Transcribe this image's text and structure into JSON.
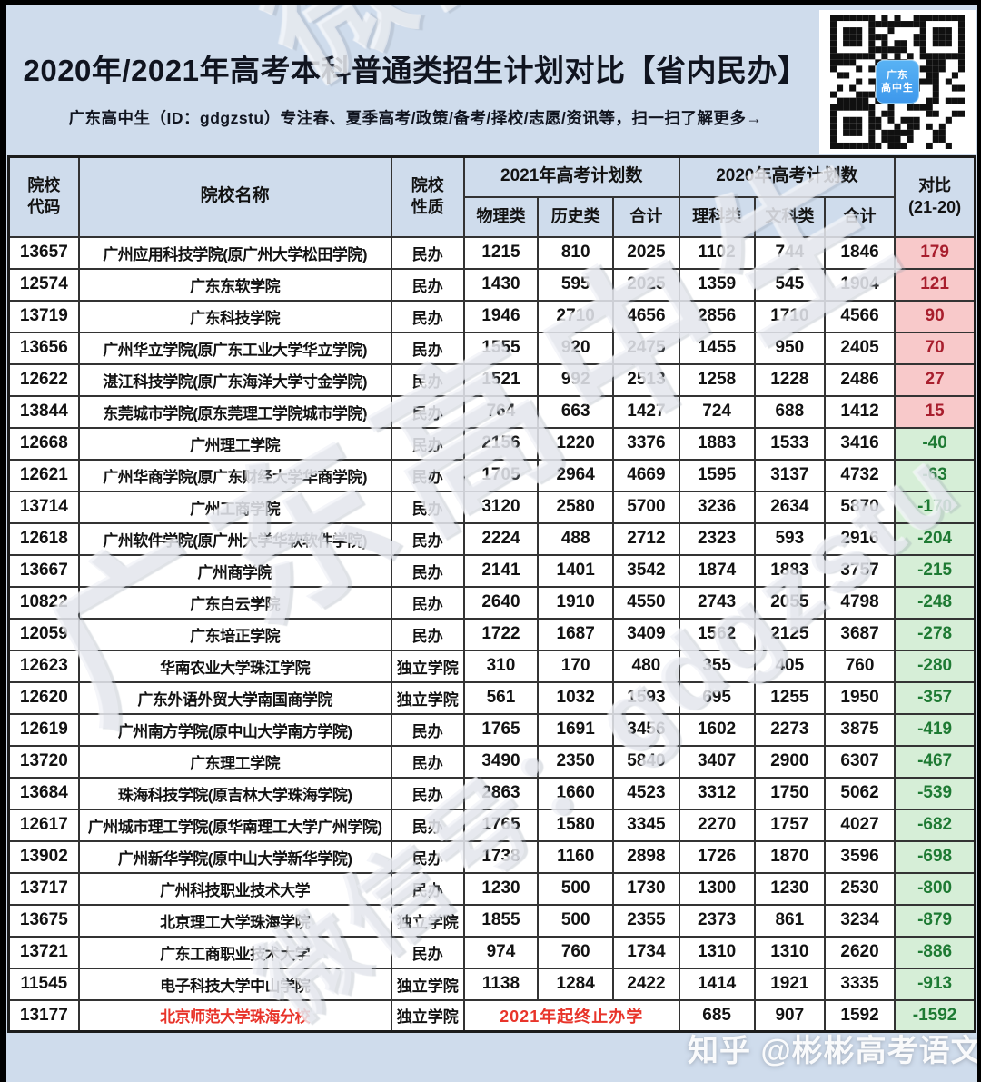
{
  "header": {
    "title": "2020年/2021年高考本科普通类招生计划对比【省内民办】",
    "subtitle": "广东高中生（ID：gdgzstu）专注春、夏季高考/政策/备考/择校/志愿/资讯等，扫一扫了解更多→",
    "qr_logo_line1": "广东",
    "qr_logo_line2": "高中生"
  },
  "watermarks": {
    "diag_main": "广东高中生",
    "diag_sub": "微信号：gdgzstu",
    "corner": "微信",
    "credit": "知乎 @彬彬高考语文"
  },
  "colors": {
    "page_bg": "#cfdcec",
    "positive_bg": "#f8c9ca",
    "positive_text": "#a81e2d",
    "negative_bg": "#d6eed7",
    "negative_text": "#1e7a33",
    "alert_text": "#e8342a",
    "qr_badge_blue": "#3e98ec"
  },
  "table": {
    "col_code": "院校\n代码",
    "col_name": "院校名称",
    "col_nature": "院校\n性质",
    "group_2021": "2021年高考计划数",
    "group_2020": "2020年高考计划数",
    "subcols": [
      "物理类",
      "历史类",
      "合计",
      "理科类",
      "文科类",
      "合计"
    ],
    "col_compare": "对比\n(21-20)",
    "rows": [
      {
        "code": "13657",
        "name": "广州应用科技学院(原广州大学松田学院)",
        "nature": "民办",
        "v2021": [
          1215,
          810,
          2025
        ],
        "v2020": [
          1102,
          744,
          1846
        ],
        "diff": "179"
      },
      {
        "code": "12574",
        "name": "广东东软学院",
        "nature": "民办",
        "v2021": [
          1430,
          595,
          2025
        ],
        "v2020": [
          1359,
          545,
          1904
        ],
        "diff": "121"
      },
      {
        "code": "13719",
        "name": "广东科技学院",
        "nature": "民办",
        "v2021": [
          1946,
          2710,
          4656
        ],
        "v2020": [
          2856,
          1710,
          4566
        ],
        "diff": "90"
      },
      {
        "code": "13656",
        "name": "广州华立学院(原广东工业大学华立学院)",
        "nature": "民办",
        "v2021": [
          1555,
          920,
          2475
        ],
        "v2020": [
          1455,
          950,
          2405
        ],
        "diff": "70"
      },
      {
        "code": "12622",
        "name": "湛江科技学院(原广东海洋大学寸金学院)",
        "nature": "民办",
        "v2021": [
          1521,
          992,
          2513
        ],
        "v2020": [
          1258,
          1228,
          2486
        ],
        "diff": "27"
      },
      {
        "code": "13844",
        "name": "东莞城市学院(原东莞理工学院城市学院)",
        "nature": "民办",
        "v2021": [
          764,
          663,
          1427
        ],
        "v2020": [
          724,
          688,
          1412
        ],
        "diff": "15"
      },
      {
        "code": "12668",
        "name": "广州理工学院",
        "nature": "民办",
        "v2021": [
          2156,
          1220,
          3376
        ],
        "v2020": [
          1883,
          1533,
          3416
        ],
        "diff": "-40"
      },
      {
        "code": "12621",
        "name": "广州华商学院(原广东财经大学华商学院)",
        "nature": "民办",
        "v2021": [
          1705,
          2964,
          4669
        ],
        "v2020": [
          1595,
          3137,
          4732
        ],
        "diff": "-63"
      },
      {
        "code": "13714",
        "name": "广州工商学院",
        "nature": "民办",
        "v2021": [
          3120,
          2580,
          5700
        ],
        "v2020": [
          3236,
          2634,
          5870
        ],
        "diff": "-170"
      },
      {
        "code": "12618",
        "name": "广州软件学院(原广州大学华软软件学院)",
        "nature": "民办",
        "v2021": [
          2224,
          488,
          2712
        ],
        "v2020": [
          2323,
          593,
          2916
        ],
        "diff": "-204"
      },
      {
        "code": "13667",
        "name": "广州商学院",
        "nature": "民办",
        "v2021": [
          2141,
          1401,
          3542
        ],
        "v2020": [
          1874,
          1883,
          3757
        ],
        "diff": "-215"
      },
      {
        "code": "10822",
        "name": "广东白云学院",
        "nature": "民办",
        "v2021": [
          2640,
          1910,
          4550
        ],
        "v2020": [
          2743,
          2055,
          4798
        ],
        "diff": "-248"
      },
      {
        "code": "12059",
        "name": "广东培正学院",
        "nature": "民办",
        "v2021": [
          1722,
          1687,
          3409
        ],
        "v2020": [
          1562,
          2125,
          3687
        ],
        "diff": "-278"
      },
      {
        "code": "12623",
        "name": "华南农业大学珠江学院",
        "nature": "独立学院",
        "v2021": [
          310,
          170,
          480
        ],
        "v2020": [
          355,
          405,
          760
        ],
        "diff": "-280"
      },
      {
        "code": "12620",
        "name": "广东外语外贸大学南国商学院",
        "nature": "独立学院",
        "v2021": [
          561,
          1032,
          1593
        ],
        "v2020": [
          695,
          1255,
          1950
        ],
        "diff": "-357"
      },
      {
        "code": "12619",
        "name": "广州南方学院(原中山大学南方学院)",
        "nature": "民办",
        "v2021": [
          1765,
          1691,
          3456
        ],
        "v2020": [
          1602,
          2273,
          3875
        ],
        "diff": "-419"
      },
      {
        "code": "13720",
        "name": "广东理工学院",
        "nature": "民办",
        "v2021": [
          3490,
          2350,
          5840
        ],
        "v2020": [
          3407,
          2900,
          6307
        ],
        "diff": "-467"
      },
      {
        "code": "13684",
        "name": "珠海科技学院(原吉林大学珠海学院)",
        "nature": "民办",
        "v2021": [
          2863,
          1660,
          4523
        ],
        "v2020": [
          3312,
          1750,
          5062
        ],
        "diff": "-539"
      },
      {
        "code": "12617",
        "name": "广州城市理工学院(原华南理工大学广州学院)",
        "nature": "民办",
        "v2021": [
          1765,
          1580,
          3345
        ],
        "v2020": [
          2270,
          1757,
          4027
        ],
        "diff": "-682"
      },
      {
        "code": "13902",
        "name": "广州新华学院(原中山大学新华学院)",
        "nature": "民办",
        "v2021": [
          1738,
          1160,
          2898
        ],
        "v2020": [
          1726,
          1870,
          3596
        ],
        "diff": "-698"
      },
      {
        "code": "13717",
        "name": "广州科技职业技术大学",
        "nature": "民办",
        "v2021": [
          1230,
          500,
          1730
        ],
        "v2020": [
          1300,
          1230,
          2530
        ],
        "diff": "-800"
      },
      {
        "code": "13675",
        "name": "北京理工大学珠海学院",
        "nature": "独立学院",
        "v2021": [
          1855,
          500,
          2355
        ],
        "v2020": [
          2373,
          861,
          3234
        ],
        "diff": "-879"
      },
      {
        "code": "13721",
        "name": "广东工商职业技术大学",
        "nature": "民办",
        "v2021": [
          974,
          760,
          1734
        ],
        "v2020": [
          1310,
          1310,
          2620
        ],
        "diff": "-886"
      },
      {
        "code": "11545",
        "name": "电子科技大学中山学院",
        "nature": "独立学院",
        "v2021": [
          1138,
          1284,
          2422
        ],
        "v2020": [
          1414,
          1921,
          3335
        ],
        "diff": "-913"
      },
      {
        "code": "13177",
        "name": "北京师范大学珠海分校",
        "name_alert": true,
        "nature": "独立学院",
        "note": "2021年起终止办学",
        "v2020": [
          685,
          907,
          1592
        ],
        "diff": "-1592"
      }
    ]
  }
}
